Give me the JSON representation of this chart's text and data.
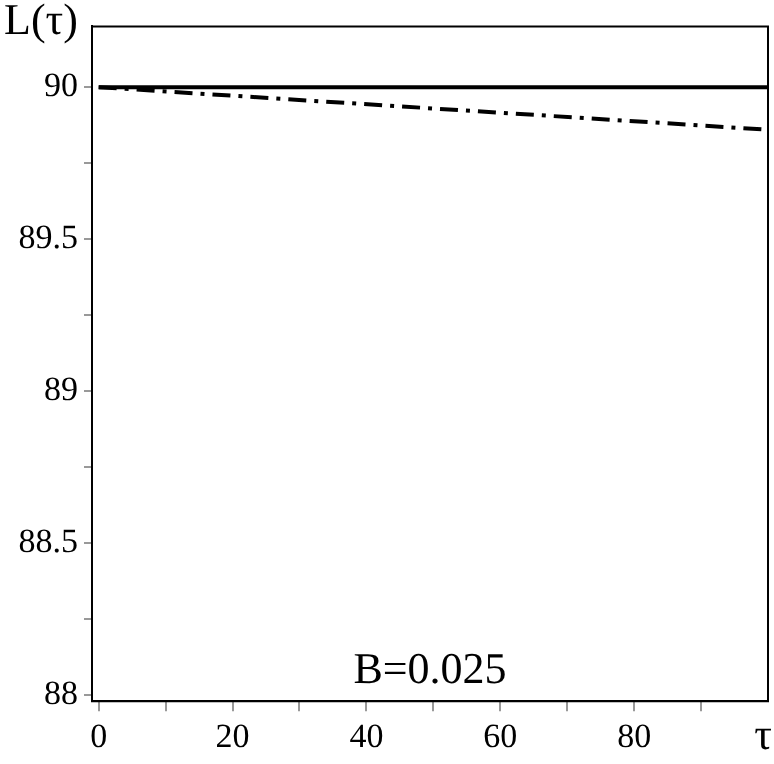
{
  "chart_data": {
    "type": "line",
    "ylabel": "L(τ)",
    "xlabel": "τ",
    "annotations": [
      "B=0.025"
    ],
    "x": [
      0,
      50,
      100
    ],
    "series": [
      {
        "color": "#000000",
        "values": [
          90,
          90,
          90
        ],
        "line_style": "solid"
      },
      {
        "color": "#000000",
        "values": [
          90,
          89.93,
          89.86
        ],
        "line_style": "dashed"
      }
    ],
    "xlim": [
      -1,
      100
    ],
    "ylim": [
      87.98,
      90.2
    ],
    "xticks": [
      0,
      {
        "value": 10,
        "label": null
      },
      20,
      {
        "value": 30,
        "label": null
      },
      40,
      {
        "value": 50,
        "label": null
      },
      60,
      {
        "value": 70,
        "label": null
      },
      80,
      {
        "value": 90,
        "label": null
      }
    ],
    "yticks": [
      88,
      {
        "value": 88.25,
        "label": null
      },
      88.5,
      {
        "value": 88.75,
        "label": null
      },
      89,
      {
        "value": 89.25,
        "label": null
      },
      89.5,
      {
        "value": 89.75,
        "label": null
      },
      90
    ],
    "grid": false,
    "legend": false,
    "marker": "none"
  }
}
